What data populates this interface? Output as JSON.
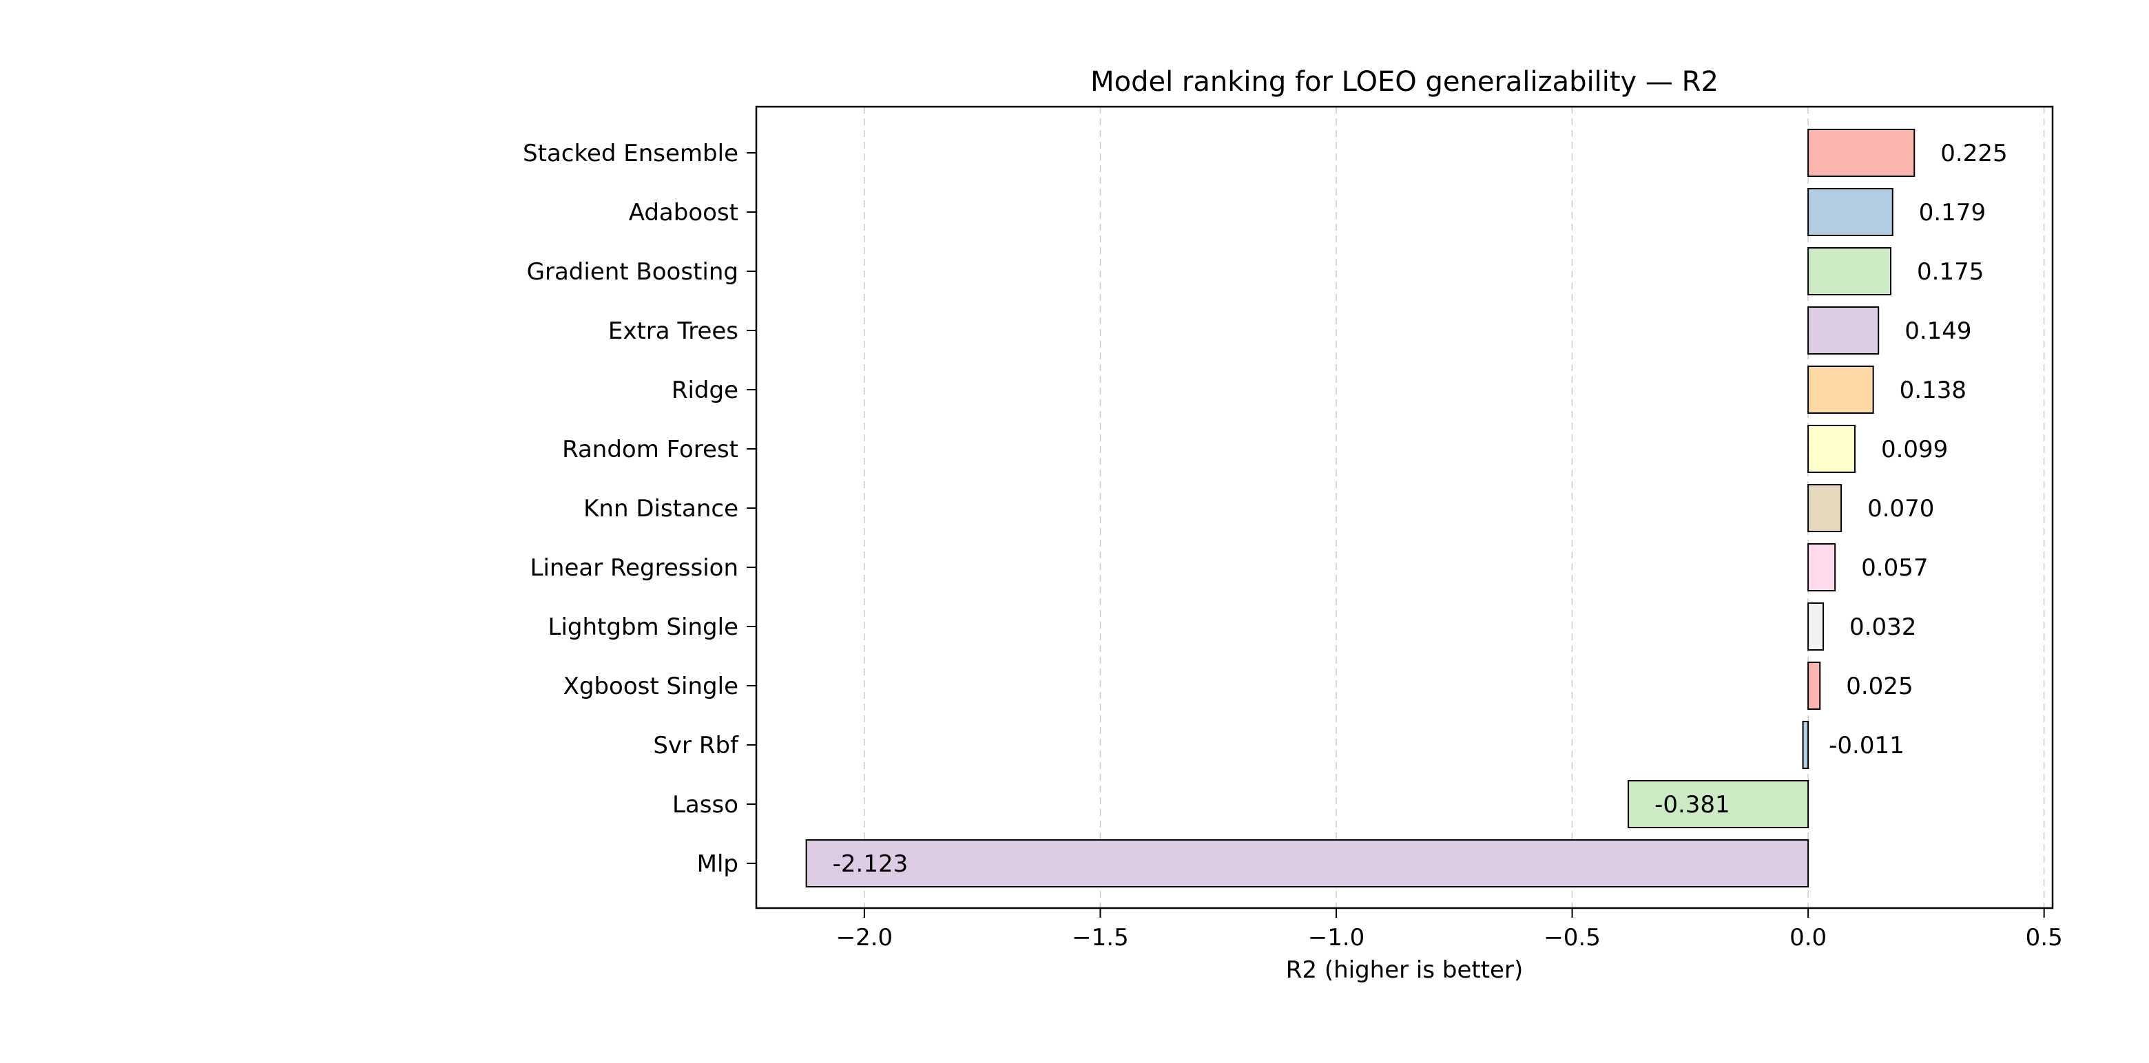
{
  "chart_data": {
    "type": "bar",
    "orientation": "horizontal",
    "title": "Model ranking for LOEO generalizability — R2",
    "xlabel": "R2 (higher is better)",
    "ylabel": "",
    "xlim": [
      -2.229,
      0.518
    ],
    "x_ticks": [
      -2.0,
      -1.5,
      -1.0,
      -0.5,
      0.0,
      0.5
    ],
    "x_tick_labels": [
      "−2.0",
      "−1.5",
      "−1.0",
      "−0.5",
      "0.0",
      "0.5"
    ],
    "grid": {
      "x": true,
      "y": false,
      "style": "dashed"
    },
    "categories": [
      "Stacked Ensemble",
      "Adaboost",
      "Gradient Boosting",
      "Extra Trees",
      "Ridge",
      "Random Forest",
      "Knn Distance",
      "Linear Regression",
      "Lightgbm Single",
      "Xgboost Single",
      "Svr Rbf",
      "Lasso",
      "Mlp"
    ],
    "values": [
      0.225,
      0.179,
      0.175,
      0.149,
      0.138,
      0.099,
      0.07,
      0.057,
      0.032,
      0.025,
      -0.011,
      -0.381,
      -2.123
    ],
    "value_labels": [
      "0.225",
      "0.179",
      "0.175",
      "0.149",
      "0.138",
      "0.099",
      "0.070",
      "0.057",
      "0.032",
      "0.025",
      "-0.011",
      "-0.381",
      "-2.123"
    ],
    "colors": [
      "#fbb4ae",
      "#b3cde3",
      "#ccebc5",
      "#decbe4",
      "#fed9a6",
      "#ffffcc",
      "#e5d8bd",
      "#fddaec",
      "#f2f2f2",
      "#fbb4ae",
      "#b3cde3",
      "#ccebc5",
      "#decbe4"
    ]
  }
}
